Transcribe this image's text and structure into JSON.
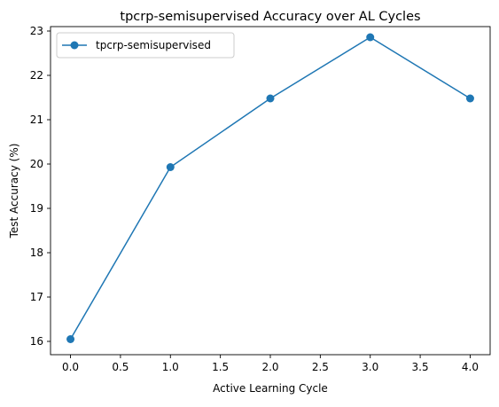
{
  "chart_data": {
    "type": "line",
    "title": "tpcrp-semisupervised Accuracy over AL Cycles",
    "xlabel": "Active Learning Cycle",
    "ylabel": "Test Accuracy (%)",
    "x": [
      0,
      1,
      2,
      3,
      4
    ],
    "series": [
      {
        "name": "tpcrp-semisupervised",
        "values": [
          16.05,
          19.93,
          21.48,
          22.86,
          21.48
        ],
        "color": "#1f77b4",
        "marker": "circle"
      }
    ],
    "xlim": [
      -0.2,
      4.2
    ],
    "ylim": [
      15.7,
      23.1
    ],
    "xticks": [
      0.0,
      0.5,
      1.0,
      1.5,
      2.0,
      2.5,
      3.0,
      3.5,
      4.0
    ],
    "xtick_labels": [
      "0.0",
      "0.5",
      "1.0",
      "1.5",
      "2.0",
      "2.5",
      "3.0",
      "3.5",
      "4.0"
    ],
    "yticks": [
      16,
      17,
      18,
      19,
      20,
      21,
      22,
      23
    ],
    "ytick_labels": [
      "16",
      "17",
      "18",
      "19",
      "20",
      "21",
      "22",
      "23"
    ],
    "grid": false,
    "legend_position": "upper-left"
  }
}
